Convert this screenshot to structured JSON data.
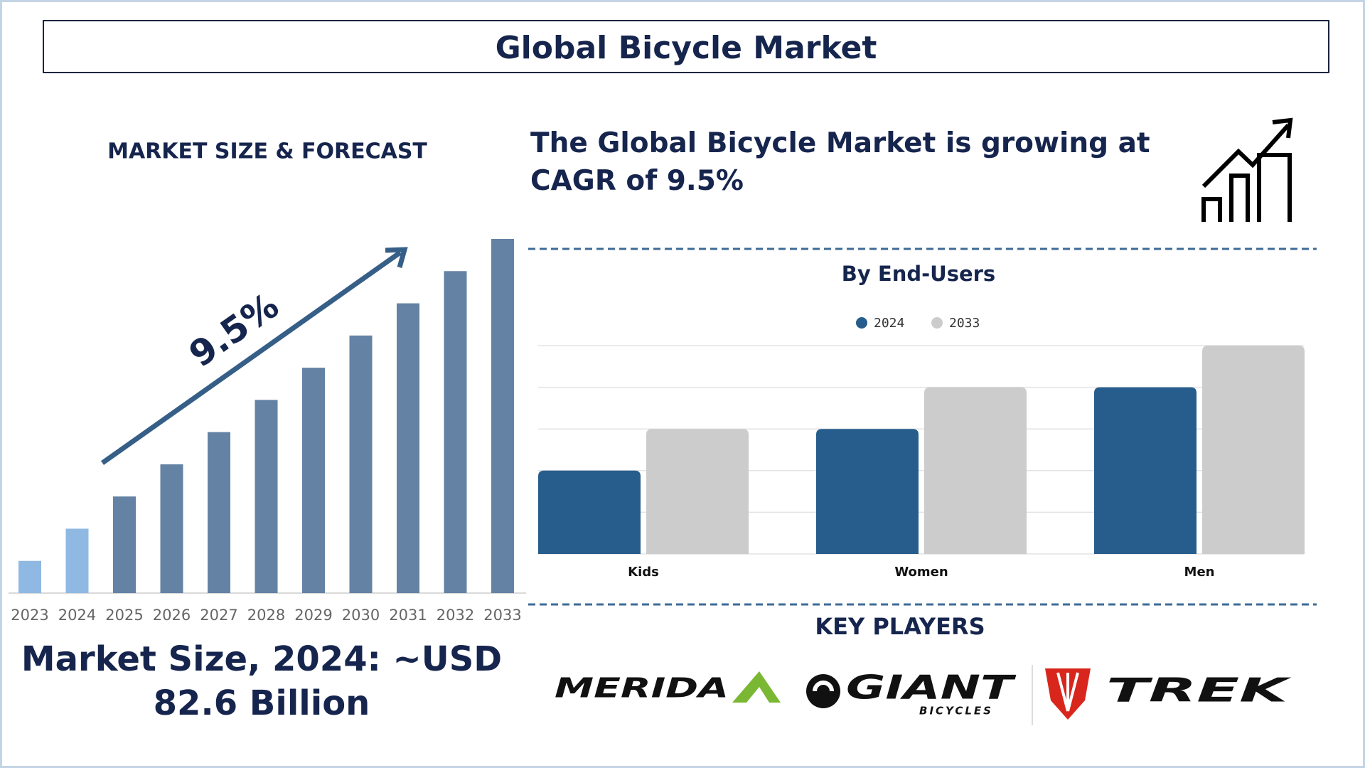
{
  "header": {
    "title": "Global Bicycle Market"
  },
  "market_size_heading": "MARKET SIZE & FORECAST",
  "headline": "The Global Bicycle Market is growing at CAGR of 9.5%",
  "market_size_note": "Market Size, 2024: ~USD 82.6 Billion",
  "key_players": {
    "title": "KEY PLAYERS",
    "logos": [
      {
        "name": "MERIDA"
      },
      {
        "name": "GIANT",
        "tagline": "BICYCLES"
      },
      {
        "name": "TREK"
      }
    ]
  },
  "chart_data": [
    {
      "type": "bar",
      "categories": [
        "2023",
        "2024",
        "2025",
        "2026",
        "2027",
        "2028",
        "2029",
        "2030",
        "2031",
        "2032",
        "2033"
      ],
      "values": [
        1,
        2,
        3,
        4,
        5,
        6,
        7,
        8,
        9,
        10,
        11
      ],
      "colors": [
        "#8fb9e2",
        "#8fb9e2",
        "#6482a4",
        "#6482a4",
        "#6482a4",
        "#6482a4",
        "#6482a4",
        "#6482a4",
        "#6482a4",
        "#6482a4",
        "#6482a4"
      ],
      "ylim": [
        0,
        11
      ],
      "annotation": "9.5%"
    },
    {
      "type": "grouped-bar",
      "title": "By End-Users",
      "categories": [
        "Kids",
        "Women",
        "Men"
      ],
      "series": [
        {
          "name": "2024",
          "color": "#265d8c",
          "values": [
            2,
            3,
            4
          ]
        },
        {
          "name": "2033",
          "color": "#cccccc",
          "values": [
            3,
            4,
            5
          ]
        }
      ],
      "ylim": [
        0,
        5
      ],
      "yticks": [
        0,
        1,
        2,
        3,
        4,
        5
      ],
      "grid": true
    }
  ]
}
